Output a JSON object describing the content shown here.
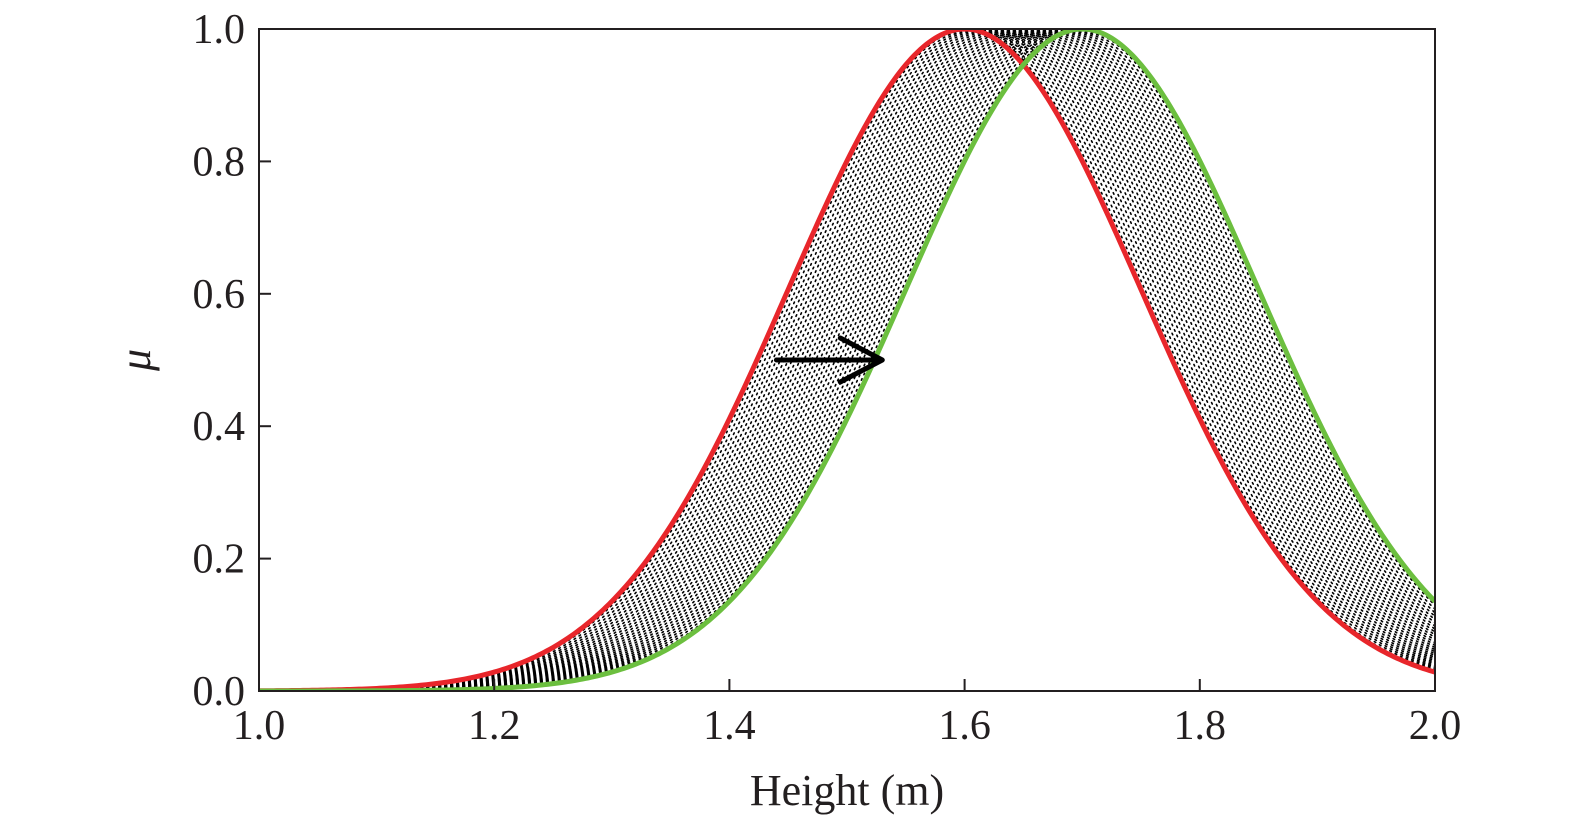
{
  "chart_data": {
    "type": "line",
    "title": "",
    "xlabel": "Height (m)",
    "ylabel": "μ",
    "xlim": [
      1.0,
      2.0
    ],
    "ylim": [
      0.0,
      1.0
    ],
    "xticks": [
      "1.0",
      "1.2",
      "1.4",
      "1.6",
      "1.8",
      "2.0"
    ],
    "yticks": [
      "0.0",
      "0.2",
      "0.4",
      "0.6",
      "0.8",
      "1.0"
    ],
    "grid": false,
    "legend": "none",
    "series": [
      {
        "color": "#e8262b",
        "function": "gaussian",
        "mean": 1.6,
        "sigma": 0.15,
        "x": [
          1.0,
          1.1,
          1.2,
          1.3,
          1.4,
          1.45,
          1.5,
          1.6,
          1.7,
          1.8,
          1.9,
          2.0
        ],
        "values": [
          0.0,
          0.004,
          0.029,
          0.135,
          0.411,
          0.607,
          0.801,
          1.0,
          0.801,
          0.411,
          0.135,
          0.029
        ]
      },
      {
        "color": "#6cbf3f",
        "function": "gaussian",
        "mean": 1.7,
        "sigma": 0.15,
        "x": [
          1.0,
          1.1,
          1.2,
          1.3,
          1.4,
          1.5,
          1.55,
          1.6,
          1.7,
          1.8,
          1.9,
          2.0
        ],
        "values": [
          0.0,
          0.0,
          0.004,
          0.029,
          0.135,
          0.411,
          0.607,
          0.801,
          1.0,
          0.801,
          0.411,
          0.135
        ]
      }
    ],
    "shaded_band": {
      "between": [
        "series 1",
        "series 2"
      ],
      "pattern": "dotted black curves (intermediate shifted membership functions)",
      "count": 30
    },
    "annotations": [
      {
        "type": "arrow",
        "direction": "right",
        "from": [
          1.44,
          0.5
        ],
        "to": [
          1.53,
          0.5
        ],
        "color": "#000000"
      }
    ]
  }
}
